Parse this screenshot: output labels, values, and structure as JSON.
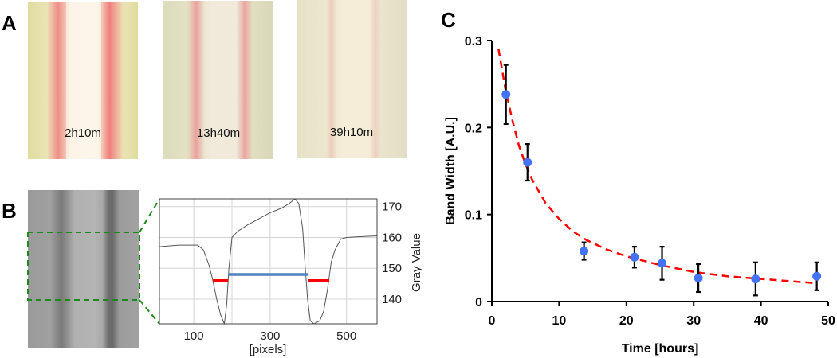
{
  "panels": {
    "a": "A",
    "b": "B",
    "c": "C"
  },
  "photos": [
    {
      "caption": "2h10m"
    },
    {
      "caption": "13h40m"
    },
    {
      "caption": "39h10m"
    }
  ],
  "chart_data": [
    {
      "type": "line",
      "panel": "B",
      "title": "",
      "xlabel": "[pixels]",
      "ylabel": "Gray Value",
      "xlim": [
        10,
        580
      ],
      "ylim": [
        132,
        172.5
      ],
      "xticks": [
        100,
        300,
        500
      ],
      "yticks": [
        140,
        150,
        160,
        170
      ],
      "grid": true,
      "series": [
        {
          "name": "profile",
          "color": "#555555",
          "x": [
            10,
            60,
            110,
            125,
            140,
            150,
            160,
            170,
            180,
            186,
            192,
            200,
            215,
            240,
            270,
            300,
            330,
            350,
            365,
            375,
            385,
            392,
            398,
            405,
            415,
            430,
            440,
            450,
            460,
            470,
            485,
            500,
            530,
            580
          ],
          "y": [
            157,
            157.5,
            157.5,
            156,
            151,
            146,
            140,
            135,
            132,
            138,
            150,
            160,
            162,
            164,
            166,
            168,
            169.5,
            171,
            172.5,
            171,
            163,
            150,
            140,
            133,
            132,
            133,
            136,
            143,
            152,
            156,
            159.5,
            160,
            160.2,
            160.5
          ]
        }
      ],
      "markers": [
        {
          "name": "left-band",
          "x": [
            150,
            190
          ],
          "y": 146,
          "color": "#ff0000"
        },
        {
          "name": "center-gap",
          "x": [
            190,
            400
          ],
          "y": 148,
          "color": "#4f81bd"
        },
        {
          "name": "right-band",
          "x": [
            400,
            455
          ],
          "y": 146,
          "color": "#ff0000"
        }
      ]
    },
    {
      "type": "scatter",
      "panel": "C",
      "title": "",
      "xlabel": "Time [hours]",
      "ylabel": "Band Width [A.U.]",
      "xlim": [
        0,
        50
      ],
      "ylim": [
        0,
        0.3
      ],
      "xticks": [
        0,
        10,
        20,
        30,
        40,
        50
      ],
      "yticks": [
        0,
        0.1,
        0.2,
        0.3
      ],
      "ytick_labels": [
        "0",
        "0.1",
        "0.2",
        "0.3"
      ],
      "grid": false,
      "series": [
        {
          "name": "measured",
          "color": "#4472f4",
          "x": [
            2.1,
            5.3,
            13.7,
            21.2,
            25.3,
            30.7,
            39.2,
            48.3
          ],
          "y": [
            0.238,
            0.16,
            0.058,
            0.051,
            0.044,
            0.027,
            0.026,
            0.029
          ],
          "err": [
            0.034,
            0.021,
            0.01,
            0.012,
            0.019,
            0.016,
            0.019,
            0.016
          ]
        },
        {
          "name": "fit",
          "color": "#ff0000",
          "style": "dashed",
          "x": [
            1,
            2,
            3,
            4,
            5,
            6,
            8,
            10,
            12,
            14,
            17,
            20,
            25,
            30,
            35,
            40,
            45,
            48.3
          ],
          "y": [
            0.29,
            0.245,
            0.21,
            0.18,
            0.158,
            0.14,
            0.113,
            0.095,
            0.081,
            0.071,
            0.06,
            0.052,
            0.042,
            0.034,
            0.029,
            0.026,
            0.023,
            0.021
          ]
        }
      ]
    }
  ]
}
